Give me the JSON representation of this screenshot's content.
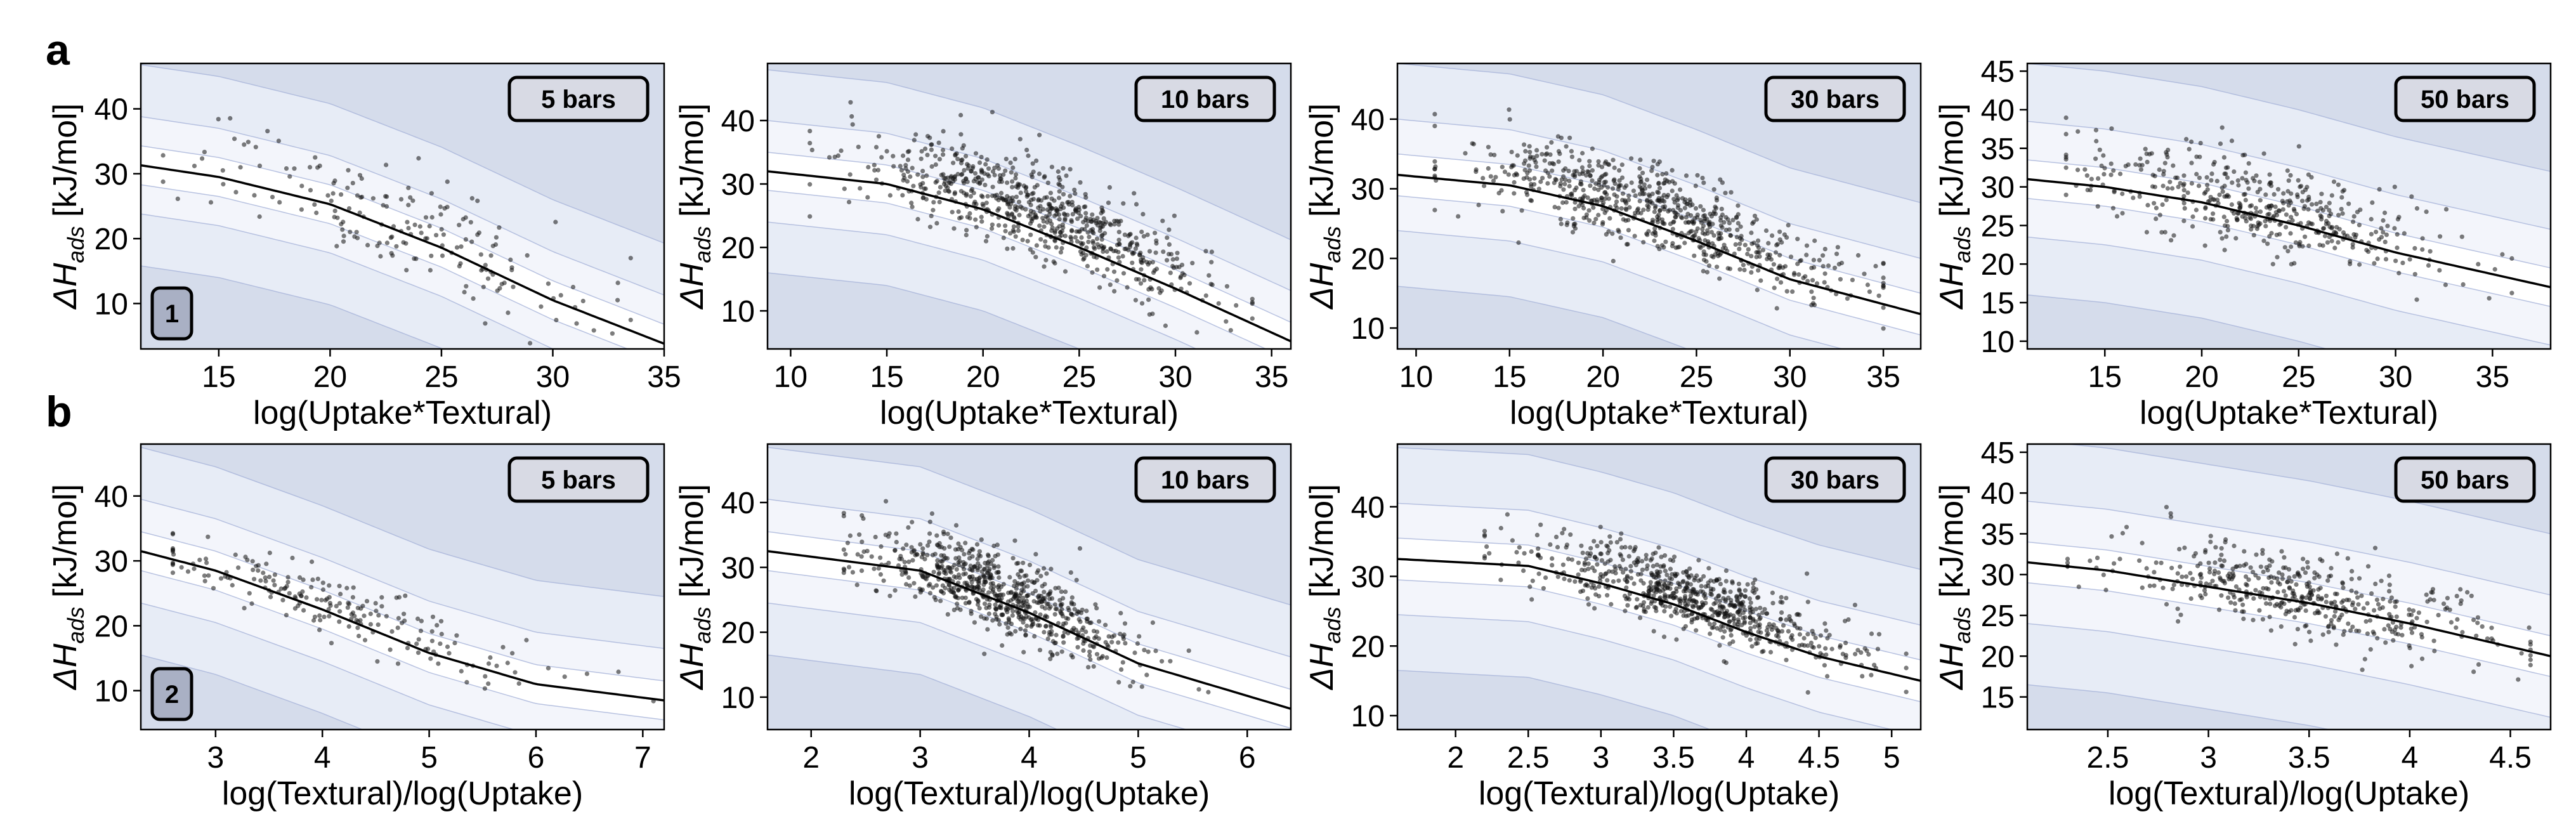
{
  "colors": {
    "band_outer": "#d5dceb",
    "band_mid": "#e7ecf6",
    "band_inner": "#f3f5fb",
    "band_line": "#a8b4da",
    "center_line": "#000000",
    "points": "#111111",
    "badge_fill": "#d8dae4",
    "id_fill": "#a9b0c4"
  },
  "rows": [
    {
      "label": "a",
      "xlabel": "log(Uptake*Textural)"
    },
    {
      "label": "b",
      "xlabel": "log(Textural)/log(Uptake)"
    }
  ],
  "ylabel": {
    "prefix": "ΔH",
    "sub": "ads",
    "suffix": " [kJ/mol]"
  },
  "chart_data": [
    {
      "type": "scatter",
      "row": 0,
      "col": 0,
      "pressure_label": "5 bars",
      "panel_id": "1",
      "xlabel": "log(Uptake*Textural)",
      "ylabel": "ΔH_ads [kJ/mol]",
      "xlim": [
        11.5,
        35
      ],
      "ylim": [
        3,
        47
      ],
      "xticks": [
        15,
        20,
        25,
        30,
        35
      ],
      "yticks": [
        10,
        20,
        30,
        40
      ],
      "fit_curve": {
        "x": [
          11.5,
          15,
          20,
          25,
          30,
          35
        ],
        "y": [
          31.3,
          29.5,
          25.3,
          18.6,
          10.5,
          3.8
        ]
      },
      "band_offsets": [
        -15.5,
        -7.5,
        -3,
        3,
        7.5,
        15.5
      ],
      "point_cloud": {
        "n": 180,
        "x_mean": 22.5,
        "x_sd": 4.5,
        "x_range": [
          12.5,
          33.5
        ],
        "y_offset": 1.5,
        "y_sd": 4
      }
    },
    {
      "type": "scatter",
      "row": 0,
      "col": 1,
      "pressure_label": "10 bars",
      "xlabel": "log(Uptake*Textural)",
      "ylabel": "ΔH_ads [kJ/mol]",
      "xlim": [
        8.8,
        36
      ],
      "ylim": [
        4,
        49
      ],
      "xticks": [
        10,
        15,
        20,
        25,
        30,
        35
      ],
      "yticks": [
        10,
        20,
        30,
        40
      ],
      "fit_curve": {
        "x": [
          8.8,
          15,
          20,
          25,
          30,
          36
        ],
        "y": [
          32,
          30,
          26,
          20,
          13.5,
          5.2
        ]
      },
      "band_offsets": [
        -16,
        -8,
        -3,
        3,
        8,
        16
      ],
      "point_cloud": {
        "n": 700,
        "x_mean": 22.5,
        "x_sd": 4.5,
        "x_range": [
          11,
          34
        ],
        "y_offset": 3,
        "y_sd": 3.5
      }
    },
    {
      "type": "scatter",
      "row": 0,
      "col": 2,
      "pressure_label": "30 bars",
      "xlabel": "log(Uptake*Textural)",
      "ylabel": "ΔH_ads [kJ/mol]",
      "xlim": [
        9,
        37
      ],
      "ylim": [
        7,
        48
      ],
      "xticks": [
        10,
        15,
        20,
        25,
        30,
        35
      ],
      "yticks": [
        10,
        20,
        30,
        40
      ],
      "fit_curve": {
        "x": [
          9,
          15,
          20,
          25,
          30,
          37
        ],
        "y": [
          32,
          30.5,
          27.5,
          22.5,
          17,
          12
        ]
      },
      "band_offsets": [
        -16,
        -8,
        -3,
        3,
        8,
        16
      ],
      "point_cloud": {
        "n": 700,
        "x_mean": 23,
        "x_sd": 5,
        "x_range": [
          11,
          35
        ],
        "y_offset": 2.5,
        "y_sd": 3
      }
    },
    {
      "type": "scatter",
      "row": 0,
      "col": 3,
      "pressure_label": "50 bars",
      "xlabel": "log(Uptake*Textural)",
      "ylabel": "ΔH_ads [kJ/mol]",
      "xlim": [
        11,
        38
      ],
      "ylim": [
        9,
        46
      ],
      "xticks": [
        15,
        20,
        25,
        30,
        35
      ],
      "yticks": [
        10,
        15,
        20,
        25,
        30,
        35,
        40,
        45
      ],
      "fit_curve": {
        "x": [
          11,
          15,
          20,
          25,
          30,
          38
        ],
        "y": [
          31,
          30,
          28,
          25,
          21.5,
          17
        ]
      },
      "band_offsets": [
        -15,
        -7.5,
        -2.5,
        2.5,
        7.5,
        15
      ],
      "point_cloud": {
        "n": 450,
        "x_mean": 23,
        "x_sd": 5,
        "x_range": [
          13,
          36
        ],
        "y_offset": 1.5,
        "y_sd": 3
      }
    },
    {
      "type": "scatter",
      "row": 1,
      "col": 0,
      "pressure_label": "5 bars",
      "panel_id": "2",
      "xlabel": "log(Textural)/log(Uptake)",
      "ylabel": "ΔH_ads [kJ/mol]",
      "xlim": [
        2.3,
        7.2
      ],
      "ylim": [
        4,
        48
      ],
      "xticks": [
        3,
        4,
        5,
        6,
        7
      ],
      "yticks": [
        10,
        20,
        30,
        40
      ],
      "fit_curve": {
        "x": [
          2.3,
          3,
          4,
          5,
          6,
          7.2
        ],
        "y": [
          31.5,
          28.5,
          22.5,
          15.8,
          11,
          8.5
        ]
      },
      "band_offsets": [
        -16,
        -8,
        -3,
        3,
        8,
        16
      ],
      "point_cloud": {
        "n": 200,
        "x_mean": 4,
        "x_sd": 0.9,
        "x_range": [
          2.6,
          7.1
        ],
        "y_offset": 1,
        "y_sd": 2.5
      }
    },
    {
      "type": "scatter",
      "row": 1,
      "col": 1,
      "pressure_label": "10 bars",
      "xlabel": "log(Textural)/log(Uptake)",
      "ylabel": "ΔH_ads [kJ/mol]",
      "xlim": [
        1.6,
        6.4
      ],
      "ylim": [
        5,
        49
      ],
      "xticks": [
        2,
        3,
        4,
        5,
        6
      ],
      "yticks": [
        10,
        20,
        30,
        40
      ],
      "fit_curve": {
        "x": [
          1.6,
          3,
          4,
          5,
          6.4
        ],
        "y": [
          32.5,
          29.5,
          23,
          15.2,
          8.2
        ]
      },
      "band_offsets": [
        -16,
        -8,
        -3,
        3,
        8,
        16
      ],
      "point_cloud": {
        "n": 700,
        "x_mean": 3.7,
        "x_sd": 0.6,
        "x_range": [
          2.3,
          6.2
        ],
        "y_offset": 1.5,
        "y_sd": 3
      }
    },
    {
      "type": "scatter",
      "row": 1,
      "col": 2,
      "pressure_label": "30 bars",
      "xlabel": "log(Textural)/log(Uptake)",
      "ylabel": "ΔH_ads [kJ/mol]",
      "xlim": [
        1.6,
        5.2
      ],
      "ylim": [
        8,
        49
      ],
      "xticks": [
        2.0,
        2.5,
        3.0,
        3.5,
        4.0,
        4.5,
        5.0
      ],
      "yticks": [
        10,
        20,
        30,
        40
      ],
      "fit_curve": {
        "x": [
          1.6,
          2.5,
          3,
          3.5,
          4,
          4.5,
          5.2
        ],
        "y": [
          32.5,
          31.5,
          29,
          26,
          22,
          18.5,
          15
        ]
      },
      "band_offsets": [
        -16,
        -8,
        -3,
        3,
        8,
        16
      ],
      "point_cloud": {
        "n": 700,
        "x_mean": 3.6,
        "x_sd": 0.55,
        "x_range": [
          2.2,
          5.1
        ],
        "y_offset": 2,
        "y_sd": 2.5
      }
    },
    {
      "type": "scatter",
      "row": 1,
      "col": 3,
      "pressure_label": "50 bars",
      "xlabel": "log(Textural)/log(Uptake)",
      "ylabel": "ΔH_ads [kJ/mol]",
      "xlim": [
        2.1,
        4.7
      ],
      "ylim": [
        11,
        46
      ],
      "xticks": [
        2.5,
        3.0,
        3.5,
        4.0,
        4.5
      ],
      "yticks": [
        15,
        20,
        25,
        30,
        35,
        40,
        45
      ],
      "fit_curve": {
        "x": [
          2.1,
          2.5,
          3,
          3.5,
          4,
          4.7
        ],
        "y": [
          31.5,
          30.5,
          28.5,
          26.5,
          24,
          20
        ]
      },
      "band_offsets": [
        -15,
        -7.5,
        -2.5,
        2.5,
        7.5,
        15
      ],
      "point_cloud": {
        "n": 450,
        "x_mean": 3.5,
        "x_sd": 0.45,
        "x_range": [
          2.3,
          4.6
        ],
        "y_offset": 1,
        "y_sd": 2.5
      }
    }
  ]
}
